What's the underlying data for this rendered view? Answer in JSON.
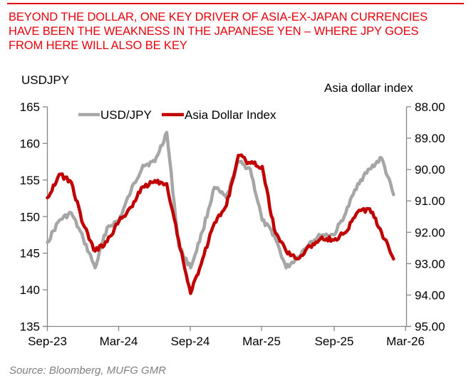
{
  "title": {
    "lines": [
      "BEYOND THE DOLLAR, ONE KEY DRIVER OF ASIA-EX-JAPAN CURRENCIES",
      "HAVE BEEN THE WEAKNESS IN THE JAPANESE YEN – WHERE JPY GOES",
      "FROM HERE WILL ALSO BE KEY"
    ],
    "color": "#e8000b"
  },
  "source": "Source: Bloomberg, MUFG GMR",
  "chart_data": {
    "type": "line",
    "title": "BEYOND THE DOLLAR, ONE KEY DRIVER OF ASIA-EX-JAPAN CURRENCIES HAVE BEEN THE WEAKNESS IN THE JAPANESE YEN – WHERE JPY GOES FROM HERE WILL ALSO BE KEY",
    "xlabel": "",
    "ylabel": "USDJPY",
    "y2label": "Asia dollar index",
    "x_tick_labels": [
      "Sep-23",
      "Mar-24",
      "Sep-24",
      "Mar-25",
      "Sep-25",
      "Mar-26"
    ],
    "ylim": [
      135,
      165
    ],
    "y_ticks": [
      135,
      140,
      145,
      150,
      155,
      160,
      165
    ],
    "y2lim": [
      95.0,
      88.0
    ],
    "y2_inverted": true,
    "y2_ticks": [
      "88.00",
      "89.00",
      "90.00",
      "91.00",
      "92.00",
      "93.00",
      "94.00",
      "95.00"
    ],
    "grid": false,
    "legend": {
      "position": "top-inside",
      "entries": [
        "USD/JPY",
        "Asia Dollar Index"
      ]
    },
    "x": [
      "2023-09",
      "2023-10",
      "2023-11",
      "2023-12",
      "2024-01",
      "2024-02",
      "2024-03",
      "2024-04",
      "2024-05",
      "2024-06",
      "2024-07",
      "2024-08",
      "2024-09",
      "2024-10",
      "2024-11",
      "2024-12",
      "2025-01",
      "2025-02",
      "2025-03",
      "2025-04",
      "2025-05",
      "2025-06",
      "2025-07",
      "2025-08",
      "2025-09",
      "2025-10",
      "2025-11",
      "2025-12",
      "2026-01",
      "2026-02"
    ],
    "series": [
      {
        "name": "USD/JPY",
        "axis": "left",
        "color": "#a6a6a6",
        "values": [
          146.5,
          149.5,
          150.5,
          147.0,
          143.0,
          148.5,
          149.5,
          153.5,
          157.0,
          157.5,
          161.5,
          146.0,
          143.0,
          148.0,
          154.0,
          152.5,
          157.5,
          156.5,
          149.5,
          147.5,
          143.0,
          144.5,
          146.5,
          147.5,
          147.5,
          150.5,
          154.5,
          156.5,
          158.0,
          153.0
        ]
      },
      {
        "name": "Asia Dollar Index",
        "axis": "right",
        "color": "#c00000",
        "values": [
          90.9,
          90.15,
          90.4,
          91.75,
          92.6,
          92.3,
          91.65,
          91.2,
          90.55,
          90.35,
          90.45,
          92.25,
          93.95,
          92.85,
          91.7,
          91.15,
          89.55,
          89.8,
          89.9,
          91.9,
          92.6,
          92.85,
          92.45,
          92.15,
          92.25,
          92.0,
          91.35,
          91.25,
          92.0,
          92.85
        ]
      }
    ]
  },
  "axes": {
    "left_title": "USDJPY",
    "right_title": "Asia dollar index",
    "left_ticks": [
      "165",
      "160",
      "155",
      "150",
      "145",
      "140",
      "135"
    ],
    "right_ticks": [
      "88.00",
      "89.00",
      "90.00",
      "91.00",
      "92.00",
      "93.00",
      "94.00",
      "95.00"
    ],
    "x_ticks": [
      "Sep-23",
      "Mar-24",
      "Sep-24",
      "Mar-25",
      "Sep-25",
      "Mar-26"
    ]
  },
  "legend": {
    "usdjpy": "USD/JPY",
    "asia": "Asia Dollar Index"
  },
  "colors": {
    "usdjpy": "#a6a6a6",
    "asia": "#c00000",
    "axis": "#868686",
    "title": "#e8000b",
    "source": "#7f7f7f"
  }
}
